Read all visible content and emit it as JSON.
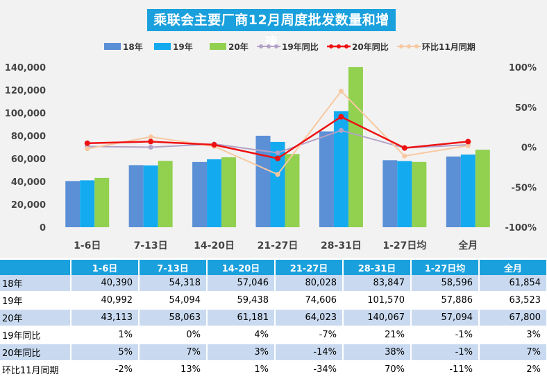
{
  "title": "乘联会主要厂商12月周度批发数量和增速",
  "colors": {
    "s18": "#5b8fd6",
    "s19": "#14aaf0",
    "s20": "#92d050",
    "yoy19": "#b3a2c7",
    "yoy20": "#ee1111",
    "mom": "#f8c8a0",
    "header_bg": "#1aa0dc",
    "row_shade": "#c9daf0"
  },
  "legend": [
    "18年",
    "19年",
    "20年",
    "19年同比",
    "20年同比",
    "环比11月同期"
  ],
  "chart_data": {
    "type": "bar",
    "categories": [
      "1-6日",
      "7-13日",
      "14-20日",
      "21-27日",
      "28-31日",
      "1-27日均",
      "全月"
    ],
    "series": [
      {
        "name": "18年",
        "values": [
          40390,
          54318,
          57046,
          80028,
          83847,
          58596,
          61854
        ]
      },
      {
        "name": "19年",
        "values": [
          40992,
          54094,
          59438,
          74606,
          101570,
          57886,
          63523
        ]
      },
      {
        "name": "20年",
        "values": [
          43113,
          58063,
          61181,
          64023,
          140067,
          57094,
          67800
        ]
      }
    ],
    "line_series": [
      {
        "name": "19年同比",
        "values": [
          1,
          0,
          4,
          -7,
          21,
          -1,
          3
        ]
      },
      {
        "name": "20年同比",
        "values": [
          5,
          7,
          3,
          -14,
          38,
          -1,
          7
        ]
      },
      {
        "name": "环比11月同期",
        "values": [
          -2,
          13,
          1,
          -34,
          70,
          -11,
          2
        ]
      }
    ],
    "ylim": [
      0,
      140000
    ],
    "yticks": [
      "0",
      "20,000",
      "40,000",
      "60,000",
      "80,000",
      "100,000",
      "120,000",
      "140,000"
    ],
    "y2lim": [
      -100,
      100
    ],
    "y2ticks": [
      "-100%",
      "-50%",
      "0%",
      "50%",
      "100%"
    ],
    "legend_position": "top",
    "grid": false
  },
  "table": {
    "headers": [
      "",
      "1-6日",
      "7-13日",
      "14-20日",
      "21-27日",
      "28-31日",
      "1-27日均",
      "全月"
    ],
    "rows": [
      {
        "label": "18年",
        "cells": [
          "40,390",
          "54,318",
          "57,046",
          "80,028",
          "83,847",
          "58,596",
          "61,854"
        ]
      },
      {
        "label": "19年",
        "cells": [
          "40,992",
          "54,094",
          "59,438",
          "74,606",
          "101,570",
          "57,886",
          "63,523"
        ]
      },
      {
        "label": "20年",
        "cells": [
          "43,113",
          "58,063",
          "61,181",
          "64,023",
          "140,067",
          "57,094",
          "67,800"
        ]
      },
      {
        "label": "19年同比",
        "cells": [
          "1%",
          "0%",
          "4%",
          "-7%",
          "21%",
          "-1%",
          "3%"
        ]
      },
      {
        "label": "20年同比",
        "cells": [
          "5%",
          "7%",
          "3%",
          "-14%",
          "38%",
          "-1%",
          "7%"
        ]
      },
      {
        "label": "环比11月同期",
        "cells": [
          "-2%",
          "13%",
          "1%",
          "-34%",
          "70%",
          "-11%",
          "2%"
        ]
      }
    ]
  }
}
